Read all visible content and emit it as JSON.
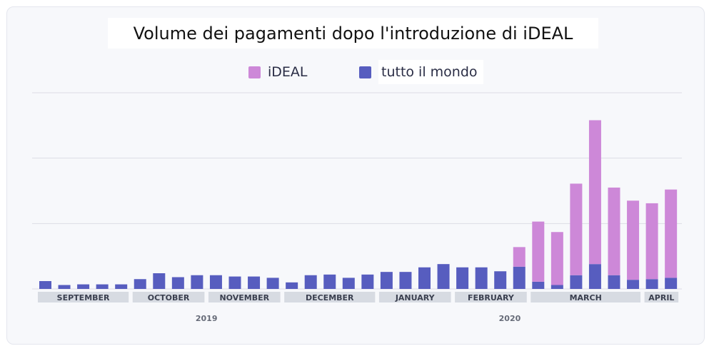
{
  "title": "Volume dei pagamenti dopo l'introduzione di iDEAL",
  "legend": [
    {
      "label": "iDEAL",
      "color": "#cd88d8"
    },
    {
      "label": "tutto il mondo",
      "color": "#575dbf"
    }
  ],
  "colors": {
    "ideal": "#cd88d8",
    "world": "#575dbf",
    "grid": "#dcdde6",
    "month_band": "#d7dbe2",
    "month_text": "#3a3f4f",
    "year_text": "#666b78"
  },
  "chart_data": {
    "type": "bar",
    "stacked": true,
    "title": "Volume dei pagamenti dopo l'introduzione di iDEAL",
    "xlabel": "",
    "ylabel": "",
    "ylim": [
      0,
      300
    ],
    "grid": true,
    "legend_position": "top-center",
    "series": [
      {
        "name": "tutto il mondo",
        "values": [
          12,
          6,
          7,
          7,
          7,
          15,
          24,
          18,
          21,
          21,
          19,
          19,
          17,
          10,
          21,
          22,
          17,
          22,
          26,
          26,
          33,
          38,
          33,
          33,
          27,
          34,
          11,
          6,
          21,
          38,
          21,
          14,
          15,
          17
        ]
      },
      {
        "name": "iDEAL",
        "values": [
          0,
          0,
          0,
          0,
          0,
          0,
          0,
          0,
          0,
          0,
          0,
          0,
          0,
          0,
          0,
          0,
          0,
          0,
          0,
          0,
          0,
          0,
          0,
          0,
          0,
          30,
          92,
          81,
          140,
          220,
          134,
          121,
          116,
          135
        ]
      }
    ],
    "month_labels": [
      "SEPTEMBER",
      "OCTOBER",
      "NOVEMBER",
      "DECEMBER",
      "JANUARY",
      "FEBRUARY",
      "MARCH",
      "APRIL"
    ],
    "year_labels": [
      "2019",
      "2020"
    ]
  }
}
